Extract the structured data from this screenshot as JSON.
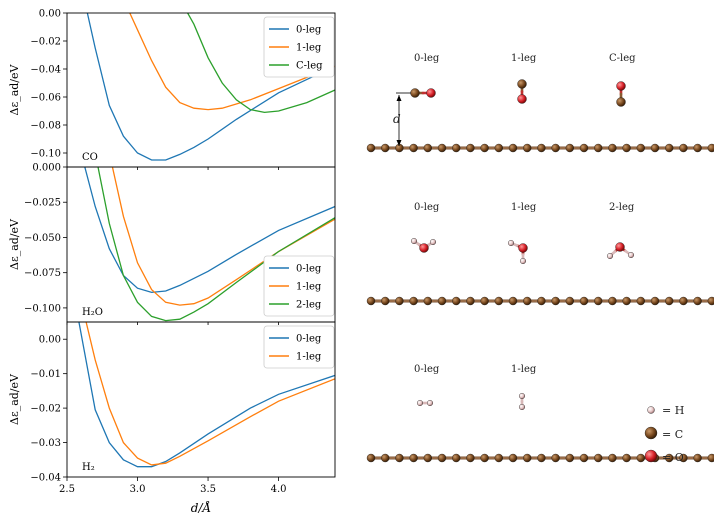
{
  "chart_data": [
    {
      "type": "line",
      "panel_label": "CO",
      "ylabel": "Δε_ad/eV",
      "xlabel": "",
      "xlim": [
        2.5,
        4.4
      ],
      "ylim": [
        -0.11,
        0.0
      ],
      "yticks": [
        0.0,
        -0.02,
        -0.04,
        -0.06,
        -0.08,
        -0.1
      ],
      "ytick_labels": [
        "0.00",
        "−0.02",
        "−0.04",
        "−0.06",
        "−0.08",
        "−0.10"
      ],
      "legend": "top-right",
      "series": [
        {
          "name": "0-leg",
          "color": "#1f77b4",
          "x": [
            2.6,
            2.7,
            2.8,
            2.9,
            3.0,
            3.1,
            3.2,
            3.3,
            3.4,
            3.5,
            3.7,
            4.0,
            4.4
          ],
          "y": [
            0.02,
            -0.025,
            -0.066,
            -0.088,
            -0.1,
            -0.105,
            -0.105,
            -0.101,
            -0.096,
            -0.09,
            -0.076,
            -0.057,
            -0.038
          ]
        },
        {
          "name": "1-leg",
          "color": "#ff7f0e",
          "x": [
            2.9,
            3.0,
            3.1,
            3.2,
            3.3,
            3.4,
            3.5,
            3.6,
            3.7,
            3.8,
            4.0,
            4.2,
            4.4
          ],
          "y": [
            0.01,
            -0.012,
            -0.034,
            -0.053,
            -0.064,
            -0.068,
            -0.069,
            -0.068,
            -0.065,
            -0.062,
            -0.054,
            -0.046,
            -0.038
          ]
        },
        {
          "name": "C-leg",
          "color": "#2ca02c",
          "x": [
            3.3,
            3.4,
            3.5,
            3.6,
            3.7,
            3.8,
            3.9,
            4.0,
            4.2,
            4.4
          ],
          "y": [
            0.01,
            -0.008,
            -0.032,
            -0.05,
            -0.062,
            -0.069,
            -0.071,
            -0.07,
            -0.064,
            -0.055
          ]
        }
      ]
    },
    {
      "type": "line",
      "panel_label": "H₂O",
      "ylabel": "Δε_ad/eV",
      "xlabel": "",
      "xlim": [
        2.5,
        4.4
      ],
      "ylim": [
        -0.11,
        0.0
      ],
      "yticks": [
        0.0,
        -0.025,
        -0.05,
        -0.075,
        -0.1
      ],
      "ytick_labels": [
        "0.000",
        "−0.025",
        "−0.050",
        "−0.075",
        "−0.100"
      ],
      "legend": "lower-right",
      "series": [
        {
          "name": "0-leg",
          "color": "#1f77b4",
          "x": [
            2.6,
            2.7,
            2.8,
            2.9,
            3.0,
            3.1,
            3.2,
            3.3,
            3.5,
            3.7,
            4.0,
            4.4
          ],
          "y": [
            0.01,
            -0.028,
            -0.058,
            -0.077,
            -0.086,
            -0.089,
            -0.088,
            -0.084,
            -0.074,
            -0.062,
            -0.045,
            -0.028
          ]
        },
        {
          "name": "1-leg",
          "color": "#ff7f0e",
          "x": [
            2.8,
            2.9,
            3.0,
            3.1,
            3.2,
            3.3,
            3.4,
            3.5,
            3.7,
            4.0,
            4.4
          ],
          "y": [
            0.01,
            -0.035,
            -0.068,
            -0.087,
            -0.096,
            -0.098,
            -0.097,
            -0.093,
            -0.08,
            -0.06,
            -0.037
          ]
        },
        {
          "name": "2-leg",
          "color": "#2ca02c",
          "x": [
            2.7,
            2.8,
            2.9,
            3.0,
            3.1,
            3.2,
            3.3,
            3.4,
            3.5,
            3.7,
            4.0,
            4.4
          ],
          "y": [
            0.01,
            -0.04,
            -0.077,
            -0.096,
            -0.106,
            -0.109,
            -0.108,
            -0.103,
            -0.097,
            -0.082,
            -0.06,
            -0.036
          ]
        }
      ]
    },
    {
      "type": "line",
      "panel_label": "H₂",
      "ylabel": "Δε_ad/eV",
      "xlabel": "d/Å",
      "xlim": [
        2.5,
        4.4
      ],
      "ylim": [
        -0.04,
        0.005
      ],
      "yticks": [
        0.0,
        -0.01,
        -0.02,
        -0.03,
        -0.04
      ],
      "ytick_labels": [
        "0.00",
        "−0.01",
        "−0.02",
        "−0.03",
        "−0.04"
      ],
      "xticks": [
        2.5,
        3.0,
        3.5,
        4.0
      ],
      "xtick_labels": [
        "2.5",
        "3.0",
        "3.5",
        "4.0"
      ],
      "legend": "top-right",
      "series": [
        {
          "name": "0-leg",
          "color": "#1f77b4",
          "x": [
            2.58,
            2.7,
            2.8,
            2.9,
            3.0,
            3.1,
            3.2,
            3.3,
            3.5,
            3.8,
            4.0,
            4.4
          ],
          "y": [
            0.006,
            -0.0205,
            -0.03,
            -0.035,
            -0.037,
            -0.037,
            -0.0355,
            -0.033,
            -0.0275,
            -0.02,
            -0.016,
            -0.0105
          ]
        },
        {
          "name": "1-leg",
          "color": "#ff7f0e",
          "x": [
            2.63,
            2.7,
            2.8,
            2.9,
            3.0,
            3.1,
            3.2,
            3.3,
            3.5,
            3.8,
            4.0,
            4.4
          ],
          "y": [
            0.006,
            -0.006,
            -0.02,
            -0.03,
            -0.0345,
            -0.0365,
            -0.036,
            -0.034,
            -0.0295,
            -0.0225,
            -0.018,
            -0.0115
          ]
        }
      ]
    }
  ],
  "molecules": {
    "co": {
      "labels": [
        "0-leg",
        "1-leg",
        "C-leg"
      ],
      "distance_label": "d"
    },
    "h2o": {
      "labels": [
        "0-leg",
        "1-leg",
        "2-leg"
      ]
    },
    "h2": {
      "labels": [
        "0-leg",
        "1-leg"
      ]
    }
  },
  "atom_key": [
    {
      "symbol": "H",
      "label": "= H",
      "color": "#e8c8c8"
    },
    {
      "symbol": "C",
      "label": "= C",
      "color": "#7a4a20"
    },
    {
      "symbol": "O",
      "label": "= O",
      "color": "#d8222a"
    }
  ]
}
